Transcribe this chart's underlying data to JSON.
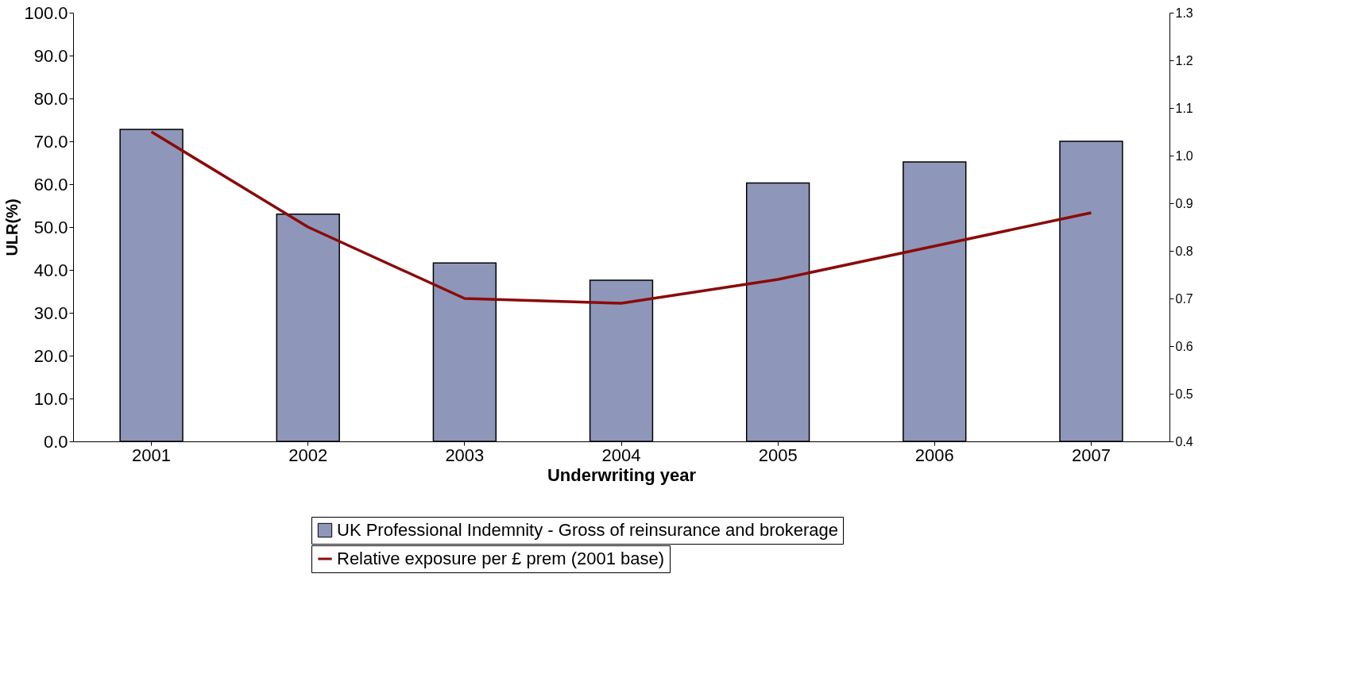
{
  "chart_data": {
    "type": "bar",
    "xlabel": "Underwriting year",
    "ylabel": "ULR(%)",
    "categories": [
      "2001",
      "2002",
      "2003",
      "2004",
      "2005",
      "2006",
      "2007"
    ],
    "series": [
      {
        "name": "UK Professional Indemnity - Gross of reinsurance and brokerage",
        "color": "#8e97b9",
        "values": [
          72.8,
          53.0,
          41.6,
          37.6,
          60.3,
          65.2,
          70.0
        ]
      },
      {
        "name": "Relative exposure per £ prem (2001 base)",
        "type": "line",
        "axis": "y2",
        "color": "#8b0a0a",
        "values": [
          1.05,
          0.85,
          0.7,
          0.69,
          0.74,
          0.81,
          0.88
        ]
      }
    ],
    "ylim": [
      0,
      100
    ],
    "yticks": [
      {
        "value": 0,
        "label": "0.0"
      },
      {
        "value": 10,
        "label": "10.0"
      },
      {
        "value": 20,
        "label": "20.0"
      },
      {
        "value": 30,
        "label": "30.0"
      },
      {
        "value": 40,
        "label": "40.0"
      },
      {
        "value": 50,
        "label": "50.0"
      },
      {
        "value": 60,
        "label": "60.0"
      },
      {
        "value": 70,
        "label": "70.0"
      },
      {
        "value": 80,
        "label": "80.0"
      },
      {
        "value": 90,
        "label": "90.0"
      },
      {
        "value": 100,
        "label": "100.0"
      }
    ],
    "y2lim": [
      0.4,
      1.3
    ],
    "y2ticks": [
      0.4,
      0.5,
      0.6,
      0.7,
      0.8,
      0.9,
      {
        "value": 1.0,
        "label": "1.0"
      },
      1.1,
      1.2,
      1.3
    ],
    "grid": false,
    "legend": "bottom",
    "marker": "none",
    "line_style": "solid"
  }
}
